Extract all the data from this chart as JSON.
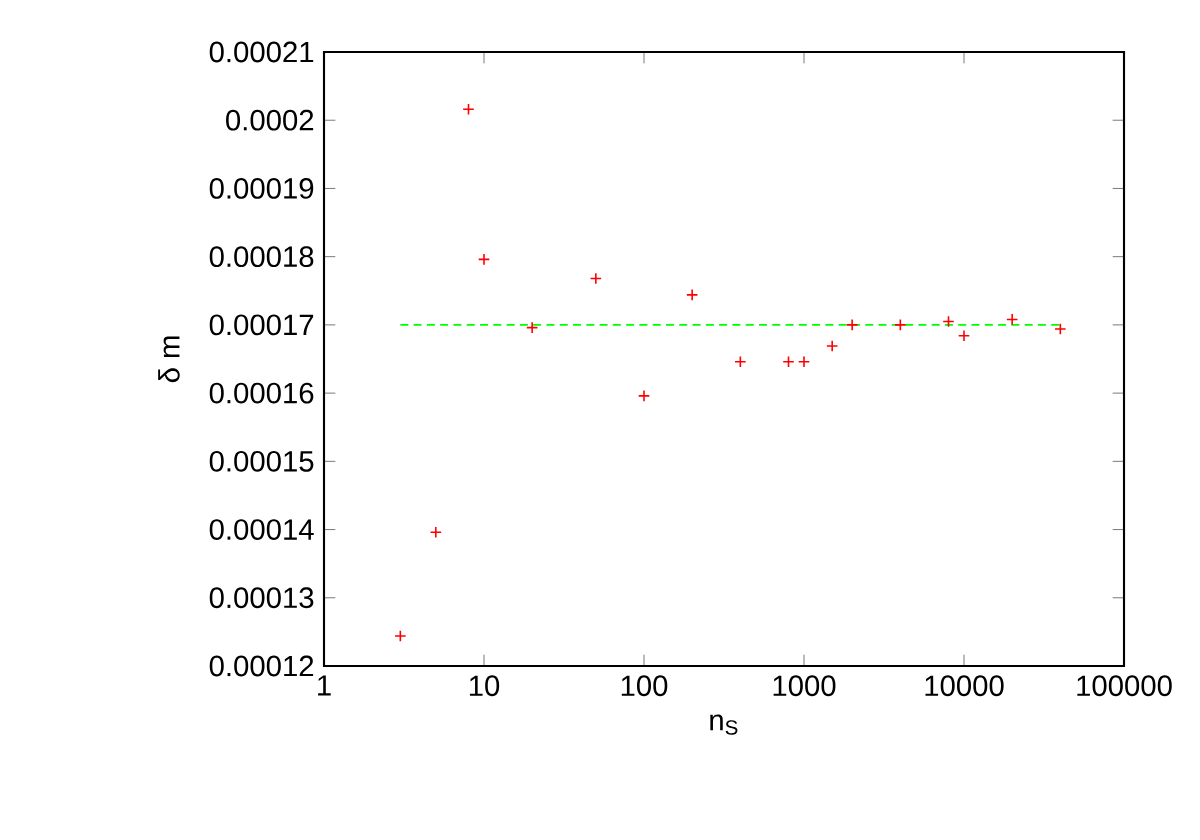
{
  "chart_data": {
    "type": "scatter",
    "xlabel": "n$_{S}$",
    "ylabel": "δ m",
    "log": "x",
    "marker": "cross",
    "xlim": [
      1,
      100000
    ],
    "xticks": [
      1,
      10,
      100,
      1000,
      10000,
      100000
    ],
    "ylim": [
      0.00012,
      0.00021
    ],
    "yticks": [
      0.00012,
      0.00013,
      0.00014,
      0.00015,
      0.00016,
      0.00017,
      0.00018,
      0.00019,
      0.0002,
      0.00021
    ],
    "series": [
      {
        "color": "#ff0000",
        "x": [
          3,
          5,
          8,
          10,
          20,
          50,
          100,
          200,
          400,
          800,
          1000,
          1500,
          2000,
          4000,
          8000,
          10000,
          20000,
          40000
        ],
        "values": [
          0.0001244,
          0.0001396,
          0.0002016,
          0.0001796,
          0.0001696,
          0.0001768,
          0.0001596,
          0.0001744,
          0.0001646,
          0.0001646,
          0.0001646,
          0.0001669,
          0.00017,
          0.00017,
          0.0001705,
          0.0001684,
          0.0001708,
          0.0001694
        ]
      },
      {
        "type": "line",
        "color": "#00ff00",
        "line_style": "dashed",
        "marker": "none",
        "x": [
          3,
          40000
        ],
        "values": [
          0.00017,
          0.00017
        ]
      }
    ]
  }
}
